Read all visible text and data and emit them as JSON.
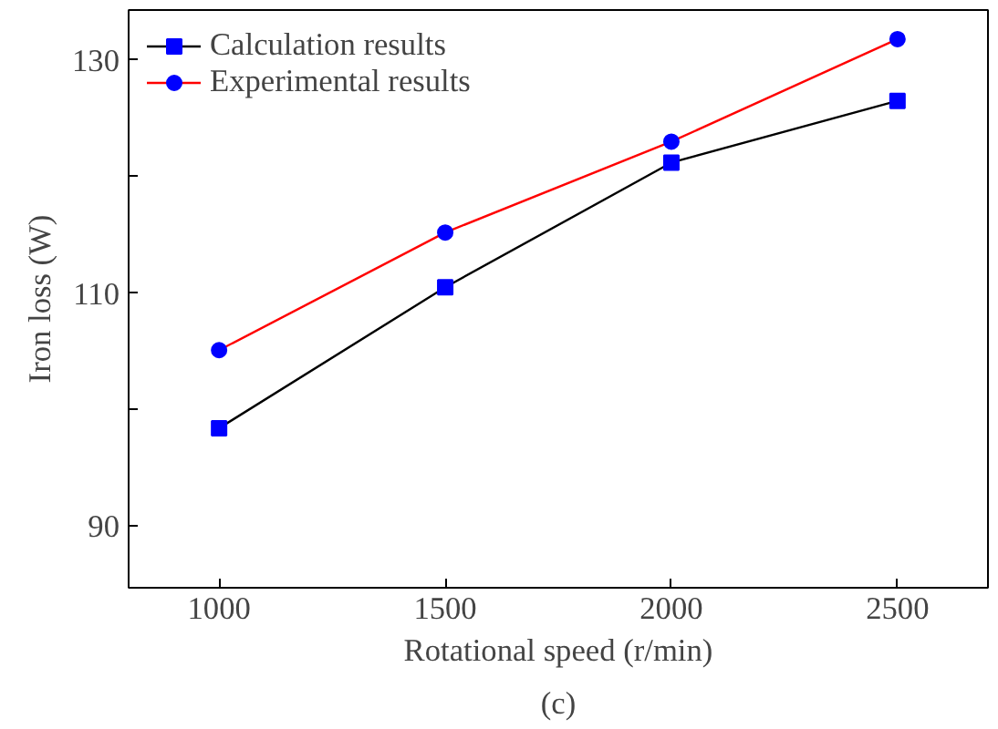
{
  "chart_data": {
    "type": "line",
    "xlabel": "Rotational speed (r/min)",
    "ylabel": "Iron loss (W)",
    "x": [
      1000,
      1500,
      2000,
      2500
    ],
    "series": [
      {
        "name": "Calculation results",
        "color": "#000000",
        "colors": [
          "#0000ff",
          "#0000ff",
          "#0000ff",
          "#0000ff"
        ],
        "marker": "square",
        "values": [
          98.4,
          110.5,
          121.2,
          126.5
        ]
      },
      {
        "name": "Experimental results",
        "color": "#ff0000",
        "colors": [
          "#0000ff",
          "#0000ff",
          "#0000ff",
          "#0000ff"
        ],
        "marker": "circle",
        "values": [
          105.1,
          115.2,
          123.0,
          131.8
        ]
      }
    ],
    "xlim": [
      800,
      2700
    ],
    "ylim": [
      84.7,
      134.3
    ],
    "xticks": [
      1000,
      1500,
      2000,
      2500
    ],
    "yticks": [
      90,
      {
        "value": 100,
        "label": null
      },
      110,
      {
        "value": 120,
        "label": null
      },
      130
    ],
    "grid": false,
    "legend": "top left",
    "annotations": [
      "(c)"
    ]
  }
}
